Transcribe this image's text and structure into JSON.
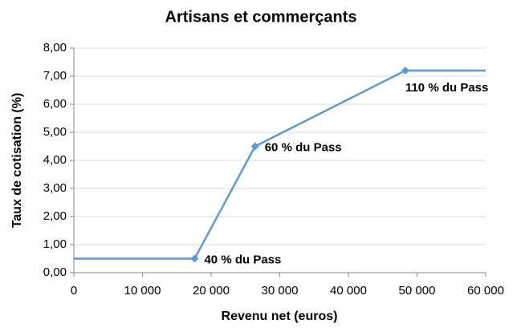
{
  "chart_data": {
    "type": "line",
    "title": "Artisans et commerçants",
    "x_label": "Revenu net (euros)",
    "y_label": "Taux de cotisation (%)",
    "x": [
      0,
      17600,
      26400,
      48300,
      60000
    ],
    "values": [
      0.5,
      0.5,
      4.5,
      7.2,
      7.2
    ],
    "color": "#5b9bd5",
    "annotations": [
      "40 % du Pass",
      "60 % du Pass",
      "110 % du Pass"
    ],
    "xlim": [
      0,
      60000
    ],
    "xticks": [
      0,
      {
        "value": 10000,
        "label": "10 000"
      },
      {
        "value": 20000,
        "label": "20 000"
      },
      {
        "value": 30000,
        "label": "30 000"
      },
      {
        "value": 40000,
        "label": "40 000"
      },
      {
        "value": 50000,
        "label": "50 000"
      },
      {
        "value": 60000,
        "label": "60 000"
      }
    ],
    "ylim": [
      0,
      8
    ],
    "yticks": [
      {
        "value": 0,
        "label": "0,00"
      },
      {
        "value": 1,
        "label": "1,00"
      },
      {
        "value": 2,
        "label": "2,00"
      },
      {
        "value": 3,
        "label": "3,00"
      },
      {
        "value": 4,
        "label": "4,00"
      },
      {
        "value": 5,
        "label": "5,00"
      },
      {
        "value": 6,
        "label": "6,00"
      },
      {
        "value": 7,
        "label": "7,00"
      },
      {
        "value": 8,
        "label": "8,00"
      }
    ],
    "grid": true
  }
}
